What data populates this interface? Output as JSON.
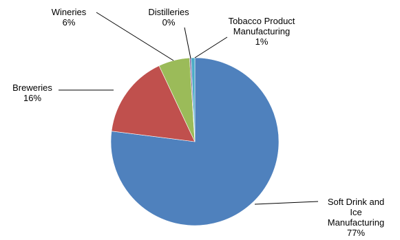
{
  "chart_data": {
    "type": "pie",
    "title": "",
    "start_angle_deg": 0,
    "direction": "clockwise",
    "slices": [
      {
        "name": "Soft Drink and Ice Manufacturing",
        "value": 77,
        "percent_label": "77%",
        "color": "#4f81bd",
        "label_lines": [
          "Soft Drink and",
          "Ice",
          "Manufacturing"
        ]
      },
      {
        "name": "Breweries",
        "value": 16,
        "percent_label": "16%",
        "color": "#c0504d",
        "label_lines": [
          "Breweries"
        ]
      },
      {
        "name": "Wineries",
        "value": 6,
        "percent_label": "6%",
        "color": "#9bbb59",
        "label_lines": [
          "Wineries"
        ]
      },
      {
        "name": "Distilleries",
        "value": 0.3,
        "percent_label": "0%",
        "color": "#8064a2",
        "label_lines": [
          "Distilleries"
        ]
      },
      {
        "name": "Tobacco Product Manufacturing",
        "value": 0.7,
        "percent_label": "1%",
        "color": "#4bacc6",
        "label_lines": [
          "Tobacco Product",
          "Manufacturing"
        ]
      }
    ]
  }
}
